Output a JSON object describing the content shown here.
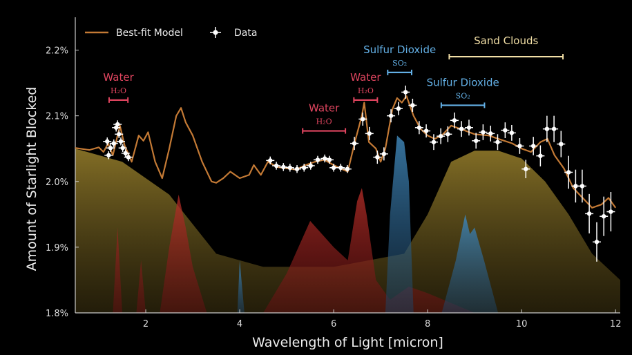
{
  "chart_data": {
    "type": "line",
    "xlabel": "Wavelength of Light [micron]",
    "ylabel": "Amount of Starlight Blocked",
    "xlim": [
      0.5,
      12.1
    ],
    "ylim": [
      1.8,
      2.25
    ],
    "xticks": [
      2,
      4,
      6,
      8,
      10,
      12
    ],
    "xtick_labels": [
      "2",
      "4",
      "6",
      "8",
      "10",
      "12"
    ],
    "yticks": [
      1.8,
      1.9,
      2.0,
      2.1,
      2.2
    ],
    "ytick_labels": [
      "1.8%",
      "1.9%",
      "2.0%",
      "2.1%",
      "2.2%"
    ],
    "grid": false,
    "legend": {
      "placement": "top-left",
      "entries": [
        "Best-fit Model",
        "Data"
      ]
    },
    "colors": {
      "model": "#c47a35",
      "data": "#ffffff",
      "water": "#e0455f",
      "so2": "#63b0e6",
      "sand": "#f2dfa6",
      "axis": "#cccccc"
    },
    "series": [
      {
        "name": "Best-fit Model",
        "type": "line",
        "x": [
          0.5,
          0.8,
          1.0,
          1.1,
          1.2,
          1.3,
          1.45,
          1.55,
          1.7,
          1.85,
          1.95,
          2.05,
          2.2,
          2.35,
          2.5,
          2.65,
          2.75,
          2.85,
          3.0,
          3.2,
          3.4,
          3.5,
          3.65,
          3.8,
          4.0,
          4.2,
          4.3,
          4.45,
          4.6,
          4.8,
          5.0,
          5.2,
          5.4,
          5.6,
          5.8,
          6.0,
          6.2,
          6.3,
          6.45,
          6.6,
          6.65,
          6.75,
          6.9,
          7.0,
          7.1,
          7.25,
          7.35,
          7.45,
          7.55,
          7.7,
          7.85,
          8.0,
          8.15,
          8.3,
          8.5,
          8.7,
          9.0,
          9.3,
          9.5,
          9.8,
          10.0,
          10.2,
          10.4,
          10.55,
          10.7,
          10.9,
          11.1,
          11.3,
          11.5,
          11.7,
          11.85,
          12.0
        ],
        "y": [
          2.051,
          2.048,
          2.052,
          2.045,
          2.058,
          2.04,
          2.085,
          2.055,
          2.03,
          2.07,
          2.062,
          2.075,
          2.03,
          2.005,
          2.05,
          2.1,
          2.112,
          2.09,
          2.07,
          2.03,
          2.0,
          1.998,
          2.005,
          2.015,
          2.005,
          2.01,
          2.025,
          2.01,
          2.03,
          2.022,
          2.02,
          2.018,
          2.025,
          2.03,
          2.033,
          2.025,
          2.018,
          2.015,
          2.06,
          2.1,
          2.12,
          2.06,
          2.05,
          2.03,
          2.05,
          2.11,
          2.127,
          2.12,
          2.13,
          2.1,
          2.08,
          2.07,
          2.065,
          2.07,
          2.085,
          2.08,
          2.072,
          2.07,
          2.065,
          2.058,
          2.05,
          2.045,
          2.06,
          2.065,
          2.04,
          2.02,
          1.99,
          1.975,
          1.96,
          1.965,
          1.975,
          1.96
        ]
      },
      {
        "name": "Data",
        "type": "scatter",
        "x": [
          1.18,
          1.21,
          1.25,
          1.32,
          1.37,
          1.4,
          1.43,
          1.47,
          1.51,
          1.57,
          1.63,
          4.65,
          4.78,
          4.93,
          5.07,
          5.22,
          5.37,
          5.51,
          5.66,
          5.81,
          5.91,
          6.0,
          6.15,
          6.29,
          6.44,
          6.62,
          6.76,
          6.93,
          7.07,
          7.22,
          7.38,
          7.53,
          7.68,
          7.82,
          7.97,
          8.13,
          8.28,
          8.43,
          8.57,
          8.72,
          8.88,
          9.03,
          9.18,
          9.34,
          9.49,
          9.65,
          9.79,
          9.96,
          10.09,
          10.25,
          10.4,
          10.54,
          10.69,
          10.84,
          11.0,
          11.15,
          11.29,
          11.44,
          11.6,
          11.75,
          11.9
        ],
        "y": [
          2.061,
          2.04,
          2.051,
          2.058,
          2.082,
          2.087,
          2.072,
          2.061,
          2.051,
          2.043,
          2.037,
          2.032,
          2.024,
          2.022,
          2.021,
          2.019,
          2.021,
          2.024,
          2.033,
          2.035,
          2.033,
          2.021,
          2.021,
          2.019,
          2.058,
          2.095,
          2.073,
          2.037,
          2.042,
          2.1,
          2.111,
          2.136,
          2.116,
          2.082,
          2.077,
          2.06,
          2.069,
          2.072,
          2.093,
          2.08,
          2.082,
          2.062,
          2.075,
          2.073,
          2.06,
          2.078,
          2.074,
          2.054,
          2.019,
          2.054,
          2.039,
          2.08,
          2.08,
          2.057,
          2.014,
          1.993,
          1.993,
          1.951,
          1.908,
          1.947,
          1.954
        ],
        "yerr": [
          0.006,
          0.006,
          0.006,
          0.006,
          0.006,
          0.006,
          0.006,
          0.006,
          0.006,
          0.006,
          0.006,
          0.006,
          0.006,
          0.006,
          0.006,
          0.006,
          0.006,
          0.006,
          0.006,
          0.006,
          0.006,
          0.006,
          0.006,
          0.006,
          0.01,
          0.01,
          0.01,
          0.01,
          0.01,
          0.01,
          0.01,
          0.01,
          0.01,
          0.01,
          0.01,
          0.012,
          0.012,
          0.012,
          0.012,
          0.012,
          0.012,
          0.012,
          0.012,
          0.012,
          0.012,
          0.012,
          0.012,
          0.012,
          0.014,
          0.014,
          0.016,
          0.02,
          0.02,
          0.02,
          0.025,
          0.025,
          0.025,
          0.03,
          0.03,
          0.03,
          0.03
        ]
      }
    ],
    "contributions": [
      {
        "kind": "sand",
        "x": [
          0.5,
          1.5,
          2.5,
          3.5,
          4.5,
          6.0,
          7.5,
          8.0,
          8.5,
          9.0,
          9.5,
          10.0,
          10.5,
          11.0,
          11.5,
          12.1
        ],
        "y": [
          2.05,
          2.03,
          1.98,
          1.89,
          1.87,
          1.87,
          1.89,
          1.95,
          2.03,
          2.047,
          2.047,
          2.035,
          2.0,
          1.95,
          1.89,
          1.85
        ]
      },
      {
        "kind": "water",
        "x": [
          1.3,
          1.4,
          1.5,
          1.8,
          1.9,
          2.0,
          2.3,
          2.5,
          2.7,
          2.85,
          3.0,
          3.3,
          4.5,
          5.0,
          5.5,
          6.0,
          6.3,
          6.5,
          6.6,
          6.7,
          6.9,
          7.2,
          7.6,
          8.0,
          9.0
        ],
        "y": [
          1.8,
          1.93,
          1.8,
          1.8,
          1.88,
          1.8,
          1.8,
          1.9,
          1.98,
          1.93,
          1.87,
          1.8,
          1.8,
          1.86,
          1.94,
          1.9,
          1.88,
          1.97,
          1.99,
          1.95,
          1.85,
          1.82,
          1.84,
          1.83,
          1.8
        ]
      },
      {
        "kind": "so2",
        "x": [
          3.95,
          4.0,
          4.1
        ],
        "y": [
          1.8,
          1.88,
          1.8
        ]
      },
      {
        "kind": "so2",
        "x": [
          7.1,
          7.2,
          7.35,
          7.5,
          7.6,
          7.7
        ],
        "y": [
          1.8,
          1.95,
          2.07,
          2.06,
          2.0,
          1.8
        ]
      },
      {
        "kind": "so2",
        "x": [
          8.3,
          8.6,
          8.8,
          8.9,
          9.0,
          9.2,
          9.5
        ],
        "y": [
          1.8,
          1.88,
          1.95,
          1.92,
          1.93,
          1.88,
          1.8
        ]
      }
    ],
    "annotations": [
      {
        "label": "Water",
        "formula": "H₂O",
        "kind": "water",
        "x0": 1.22,
        "x1": 1.62,
        "y": 2.124
      },
      {
        "label": "Water",
        "formula": "H₂O",
        "kind": "water",
        "x0": 5.34,
        "x1": 6.25,
        "y": 2.077
      },
      {
        "label": "Water",
        "formula": "H₂O",
        "kind": "water",
        "x0": 6.43,
        "x1": 6.93,
        "y": 2.124
      },
      {
        "label": "Sulfur Dioxide",
        "formula": "SO₂",
        "kind": "so2",
        "x0": 7.15,
        "x1": 7.66,
        "y": 2.166
      },
      {
        "label": "Sulfur Dioxide",
        "formula": "SO₂",
        "kind": "so2",
        "x0": 8.29,
        "x1": 9.21,
        "y": 2.116
      },
      {
        "label": "Sand Clouds",
        "formula": "",
        "kind": "sand",
        "x0": 8.46,
        "x1": 10.88,
        "y": 2.19
      }
    ]
  }
}
